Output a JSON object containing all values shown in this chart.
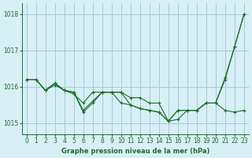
{
  "title": "Graphe pression niveau de la mer (hPa)",
  "background_color": "#d8eff5",
  "grid_color": "#a0ccd8",
  "line_color": "#1a6e2a",
  "x_ticks": [
    0,
    1,
    2,
    3,
    4,
    5,
    6,
    7,
    8,
    9,
    10,
    11,
    12,
    13,
    14,
    15,
    16,
    17,
    18,
    19,
    20,
    21,
    22,
    23
  ],
  "y_ticks": [
    1015,
    1016,
    1017,
    1018
  ],
  "ylim": [
    1014.7,
    1018.3
  ],
  "xlim": [
    -0.5,
    23.5
  ],
  "series": [
    [
      1016.2,
      1016.2,
      1015.9,
      1016.1,
      1015.9,
      1015.8,
      1015.55,
      1015.85,
      1015.85,
      1015.85,
      1015.85,
      1015.7,
      1015.7,
      1015.55,
      1015.55,
      1015.05,
      1015.1,
      1015.35,
      1015.35,
      1015.55,
      1015.55,
      1016.2,
      1017.1,
      1018.0
    ],
    [
      1016.2,
      1016.2,
      1015.9,
      1016.05,
      1015.9,
      1015.85,
      1015.35,
      1015.6,
      1015.85,
      1015.85,
      1015.85,
      1015.5,
      1015.4,
      1015.35,
      1015.3,
      1015.05,
      1015.35,
      1015.35,
      1015.35,
      1015.55,
      1015.55,
      1015.35,
      1015.3,
      1015.35
    ],
    [
      1016.2,
      1016.2,
      1015.9,
      1016.1,
      1015.9,
      1015.85,
      1015.3,
      1015.55,
      1015.85,
      1015.85,
      1015.55,
      1015.5,
      1015.4,
      1015.35,
      1015.3,
      1015.05,
      1015.35,
      1015.35,
      1015.35,
      1015.55,
      1015.55,
      1016.25,
      1017.1,
      1018.0
    ]
  ],
  "marker": "+"
}
